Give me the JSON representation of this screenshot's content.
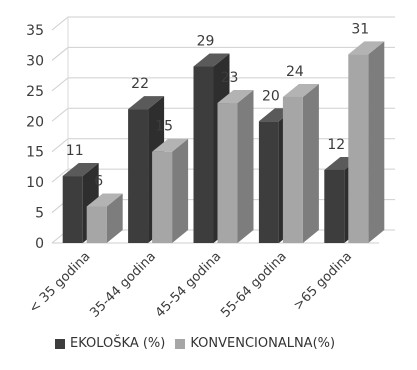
{
  "chart_data": {
    "type": "bar",
    "categories": [
      "< 35 godina",
      "35-44 godina",
      "45-54 godina",
      "55-64 godina",
      ">65 godina"
    ],
    "series": [
      {
        "name": "EKOLOŠKA (%)",
        "values": [
          11,
          22,
          29,
          20,
          12
        ],
        "color": "#3d3d3d"
      },
      {
        "name": "KONVENCIONALNA(%)",
        "values": [
          6,
          15,
          23,
          24,
          31
        ],
        "color": "#a6a6a6"
      }
    ],
    "data_labels": [
      [
        "11",
        "22",
        "29",
        "20",
        "12"
      ],
      [
        "6",
        "15",
        "23",
        "24",
        "31"
      ]
    ],
    "yticks": [
      "0",
      "5",
      "10",
      "15",
      "20",
      "25",
      "30",
      "35"
    ],
    "ylim": [
      0,
      35
    ],
    "grid": true,
    "style": "3d-columns",
    "legend_position": "bottom"
  }
}
